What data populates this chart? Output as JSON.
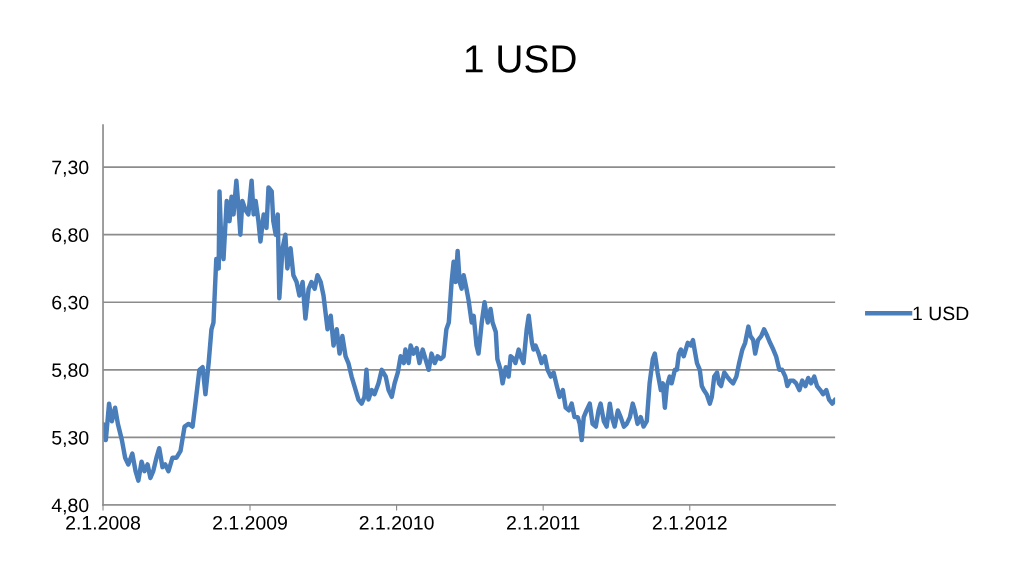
{
  "chart_data": {
    "type": "line",
    "title": "1 USD",
    "xlim": [
      "2008-01-02",
      "2012-12-29"
    ],
    "xticks": [
      {
        "value": "2008-01-02",
        "label": "2.1.2008"
      },
      {
        "value": "2009-01-02",
        "label": "2.1.2009"
      },
      {
        "value": "2010-01-02",
        "label": "2.1.2010"
      },
      {
        "value": "2011-01-02",
        "label": "2.1.2011"
      },
      {
        "value": "2012-01-02",
        "label": "2.1.2012"
      }
    ],
    "ylim": [
      4.8,
      7.61
    ],
    "yticks": [
      {
        "value": 4.8,
        "label": "4,80"
      },
      {
        "value": 5.3,
        "label": "5,30"
      },
      {
        "value": 5.8,
        "label": "5,80"
      },
      {
        "value": 6.3,
        "label": "6,30"
      },
      {
        "value": 6.8,
        "label": "6,80"
      },
      {
        "value": 7.3,
        "label": "7,30"
      }
    ],
    "grid": "y",
    "legend": "right",
    "marker": "none",
    "line_style": "solid",
    "series": [
      {
        "name": "1 USD",
        "color": "#4a7ebb",
        "x": [
          "2008-01-02",
          "2008-01-09",
          "2008-01-17",
          "2008-01-24",
          "2008-02-01",
          "2008-02-08",
          "2008-02-18",
          "2008-02-26",
          "2008-03-05",
          "2008-03-15",
          "2008-03-23",
          "2008-03-30",
          "2008-04-07",
          "2008-04-14",
          "2008-04-22",
          "2008-04-29",
          "2008-05-06",
          "2008-05-14",
          "2008-05-21",
          "2008-05-29",
          "2008-06-05",
          "2008-06-13",
          "2008-06-23",
          "2008-07-03",
          "2008-07-13",
          "2008-07-23",
          "2008-08-02",
          "2008-08-12",
          "2008-08-19",
          "2008-08-29",
          "2008-09-06",
          "2008-09-13",
          "2008-09-21",
          "2008-09-28",
          "2008-10-03",
          "2008-10-10",
          "2008-10-16",
          "2008-10-18",
          "2008-10-23",
          "2008-10-28",
          "2008-11-05",
          "2008-11-12",
          "2008-11-17",
          "2008-11-22",
          "2008-11-29",
          "2008-12-05",
          "2008-12-09",
          "2008-12-14",
          "2008-12-22",
          "2008-12-29",
          "2009-01-06",
          "2009-01-11",
          "2009-01-16",
          "2009-01-23",
          "2009-01-28",
          "2009-02-05",
          "2009-02-12",
          "2009-02-17",
          "2009-02-25",
          "2009-03-01",
          "2009-03-07",
          "2009-03-12",
          "2009-03-16",
          "2009-03-24",
          "2009-03-31",
          "2009-04-05",
          "2009-04-13",
          "2009-04-20",
          "2009-04-28",
          "2009-05-05",
          "2009-05-13",
          "2009-05-20",
          "2009-05-28",
          "2009-06-04",
          "2009-06-12",
          "2009-06-19",
          "2009-06-27",
          "2009-07-04",
          "2009-07-14",
          "2009-07-22",
          "2009-07-29",
          "2009-08-06",
          "2009-08-13",
          "2009-08-20",
          "2009-08-28",
          "2009-09-04",
          "2009-09-12",
          "2009-09-22",
          "2009-09-29",
          "2009-10-07",
          "2009-10-14",
          "2009-10-19",
          "2009-10-24",
          "2009-11-01",
          "2009-11-08",
          "2009-11-18",
          "2009-11-26",
          "2009-12-06",
          "2009-12-13",
          "2009-12-21",
          "2009-12-28",
          "2010-01-05",
          "2010-01-12",
          "2010-01-20",
          "2010-01-24",
          "2010-02-01",
          "2010-02-06",
          "2010-02-13",
          "2010-02-21",
          "2010-02-28",
          "2010-03-08",
          "2010-03-15",
          "2010-03-23",
          "2010-03-30",
          "2010-04-07",
          "2010-04-14",
          "2010-04-22",
          "2010-04-29",
          "2010-05-06",
          "2010-05-12",
          "2010-05-19",
          "2010-05-24",
          "2010-05-29",
          "2010-06-03",
          "2010-06-08",
          "2010-06-13",
          "2010-06-18",
          "2010-06-25",
          "2010-06-30",
          "2010-07-08",
          "2010-07-13",
          "2010-07-20",
          "2010-07-25",
          "2010-08-02",
          "2010-08-09",
          "2010-08-17",
          "2010-08-24",
          "2010-08-29",
          "2010-09-06",
          "2010-09-10",
          "2010-09-18",
          "2010-09-23",
          "2010-10-01",
          "2010-10-08",
          "2010-10-13",
          "2010-10-21",
          "2010-10-25",
          "2010-11-02",
          "2010-11-07",
          "2010-11-14",
          "2010-11-22",
          "2010-11-27",
          "2010-12-05",
          "2010-12-09",
          "2010-12-14",
          "2010-12-22",
          "2010-12-29",
          "2011-01-06",
          "2011-01-13",
          "2011-01-21",
          "2011-01-28",
          "2011-02-05",
          "2011-02-12",
          "2011-02-20",
          "2011-02-27",
          "2011-03-07",
          "2011-03-14",
          "2011-03-21",
          "2011-03-29",
          "2011-04-03",
          "2011-04-08",
          "2011-04-13",
          "2011-04-20",
          "2011-04-28",
          "2011-05-05",
          "2011-05-13",
          "2011-05-20",
          "2011-05-25",
          "2011-06-02",
          "2011-06-09",
          "2011-06-17",
          "2011-06-22",
          "2011-06-29",
          "2011-07-07",
          "2011-07-14",
          "2011-07-22",
          "2011-07-29",
          "2011-08-06",
          "2011-08-13",
          "2011-08-18",
          "2011-08-25",
          "2011-09-02",
          "2011-09-09",
          "2011-09-17",
          "2011-09-24",
          "2011-10-02",
          "2011-10-07",
          "2011-10-14",
          "2011-10-22",
          "2011-10-27",
          "2011-11-01",
          "2011-11-06",
          "2011-11-13",
          "2011-11-18",
          "2011-11-26",
          "2011-12-01",
          "2011-12-06",
          "2011-12-11",
          "2011-12-18",
          "2011-12-23",
          "2011-12-28",
          "2012-01-05",
          "2012-01-10",
          "2012-01-14",
          "2012-01-20",
          "2012-01-27",
          "2012-02-01",
          "2012-02-06",
          "2012-02-13",
          "2012-02-21",
          "2012-02-26",
          "2012-03-03",
          "2012-03-10",
          "2012-03-15",
          "2012-03-20",
          "2012-03-28",
          "2012-04-04",
          "2012-04-12",
          "2012-04-19",
          "2012-04-27",
          "2012-05-04",
          "2012-05-12",
          "2012-05-19",
          "2012-05-27",
          "2012-06-01",
          "2012-06-08",
          "2012-06-13",
          "2012-06-20",
          "2012-06-28",
          "2012-07-05",
          "2012-07-13",
          "2012-07-20",
          "2012-07-28",
          "2012-08-04",
          "2012-08-12",
          "2012-08-19",
          "2012-08-27",
          "2012-09-01",
          "2012-09-08",
          "2012-09-16",
          "2012-09-23",
          "2012-10-01",
          "2012-10-08",
          "2012-10-16",
          "2012-10-23",
          "2012-10-30",
          "2012-11-07",
          "2012-11-14",
          "2012-11-22",
          "2012-11-29",
          "2012-12-07",
          "2012-12-14",
          "2012-12-22",
          "2012-12-29"
        ],
        "values": [
          5.4,
          5.28,
          5.55,
          5.42,
          5.52,
          5.4,
          5.28,
          5.15,
          5.1,
          5.18,
          5.05,
          4.98,
          5.12,
          5.05,
          5.1,
          5.0,
          5.05,
          5.15,
          5.22,
          5.08,
          5.1,
          5.05,
          5.15,
          5.15,
          5.2,
          5.38,
          5.4,
          5.38,
          5.55,
          5.8,
          5.82,
          5.62,
          5.85,
          6.1,
          6.15,
          6.62,
          6.55,
          7.12,
          6.7,
          6.62,
          7.05,
          6.9,
          7.08,
          6.95,
          7.2,
          6.98,
          6.8,
          7.05,
          6.98,
          6.95,
          7.2,
          6.95,
          7.05,
          6.9,
          6.75,
          6.95,
          6.85,
          7.15,
          7.12,
          6.9,
          6.8,
          6.95,
          6.33,
          6.7,
          6.8,
          6.55,
          6.7,
          6.5,
          6.45,
          6.35,
          6.45,
          6.18,
          6.4,
          6.45,
          6.4,
          6.5,
          6.45,
          6.35,
          6.1,
          6.2,
          5.98,
          6.1,
          5.92,
          6.05,
          5.9,
          5.85,
          5.75,
          5.65,
          5.58,
          5.55,
          5.6,
          5.8,
          5.58,
          5.65,
          5.62,
          5.7,
          5.8,
          5.75,
          5.65,
          5.6,
          5.7,
          5.78,
          5.9,
          5.85,
          5.95,
          5.85,
          5.98,
          5.92,
          5.96,
          5.85,
          5.95,
          5.88,
          5.8,
          5.92,
          5.85,
          5.9,
          5.88,
          5.9,
          6.1,
          6.15,
          6.45,
          6.6,
          6.45,
          6.68,
          6.45,
          6.4,
          6.5,
          6.4,
          6.32,
          6.15,
          6.2,
          5.98,
          5.92,
          6.15,
          6.3,
          6.15,
          6.25,
          6.15,
          6.08,
          5.88,
          5.8,
          5.7,
          5.82,
          5.75,
          5.9,
          5.88,
          5.85,
          5.95,
          5.9,
          5.85,
          6.1,
          6.2,
          6.0,
          5.95,
          5.98,
          5.92,
          5.85,
          5.9,
          5.8,
          5.75,
          5.78,
          5.68,
          5.6,
          5.65,
          5.52,
          5.5,
          5.55,
          5.45,
          5.45,
          5.4,
          5.28,
          5.45,
          5.5,
          5.55,
          5.4,
          5.38,
          5.5,
          5.55,
          5.42,
          5.38,
          5.55,
          5.45,
          5.38,
          5.5,
          5.45,
          5.38,
          5.4,
          5.45,
          5.55,
          5.5,
          5.4,
          5.45,
          5.38,
          5.42,
          5.7,
          5.88,
          5.92,
          5.78,
          5.65,
          5.7,
          5.52,
          5.68,
          5.75,
          5.7,
          5.8,
          5.8,
          5.92,
          5.95,
          5.9,
          5.95,
          6.0,
          5.98,
          6.02,
          5.95,
          5.85,
          5.8,
          5.68,
          5.65,
          5.62,
          5.55,
          5.6,
          5.75,
          5.78,
          5.7,
          5.68,
          5.78,
          5.75,
          5.72,
          5.7,
          5.75,
          5.85,
          5.95,
          6.0,
          6.12,
          6.05,
          6.02,
          5.92,
          6.02,
          6.05,
          6.1,
          6.05,
          6.0,
          5.95,
          5.9,
          5.8,
          5.8,
          5.75,
          5.68,
          5.72,
          5.72,
          5.7,
          5.65,
          5.72,
          5.68,
          5.74,
          5.7,
          5.75,
          5.68,
          5.65,
          5.62,
          5.65,
          5.58,
          5.55,
          5.58
        ]
      }
    ]
  }
}
